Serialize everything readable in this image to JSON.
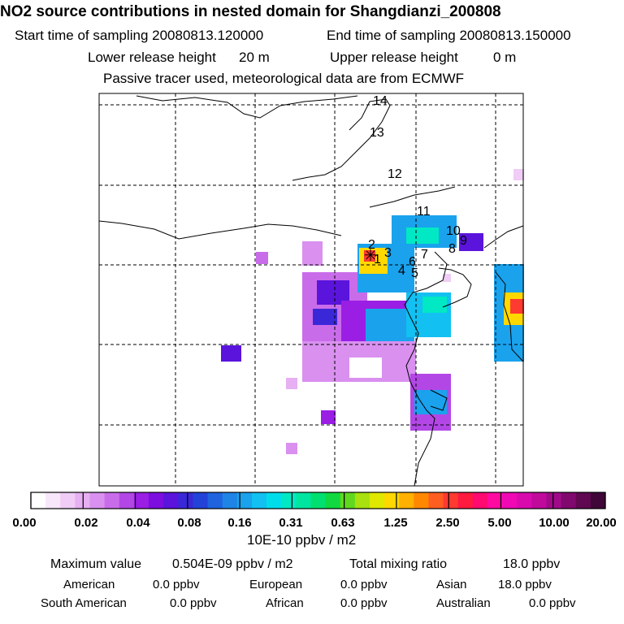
{
  "header": {
    "title": "NO2 source contributions in nested domain for Shangdianzi_200808",
    "start_label": "Start time of sampling 20080813.120000",
    "end_label": "End time of sampling 20080813.150000",
    "lower_label": "Lower release height",
    "lower_value": "20 m",
    "upper_label": "Upper release height",
    "upper_value": "0 m",
    "tracer_note": "Passive tracer used, meteorological data are from ECMWF"
  },
  "map": {
    "site_marker": "✳",
    "region_labels": [
      "1",
      "2",
      "3",
      "4",
      "5",
      "6",
      "7",
      "8",
      "9",
      "10",
      "11",
      "12",
      "13",
      "14"
    ]
  },
  "colorbar": {
    "ticks": [
      "0.00",
      "0.02",
      "0.04",
      "0.08",
      "0.16",
      "0.31",
      "0.63",
      "1.25",
      "2.50",
      "5.00",
      "10.00",
      "20.00"
    ],
    "unit": "10E-10 ppbv / m2",
    "colors": [
      "#ffffff",
      "#f8e6fa",
      "#f0ccf6",
      "#e6b0f2",
      "#d990ef",
      "#c96cea",
      "#b347e6",
      "#9a1ee3",
      "#7c0ee0",
      "#5a14dc",
      "#3a28d8",
      "#2342d8",
      "#1f63df",
      "#1e84e6",
      "#1aa2ed",
      "#12c0f1",
      "#00ddea",
      "#00e8c4",
      "#00e6a0",
      "#00e070",
      "#10d840",
      "#60d820",
      "#a8e010",
      "#e0e800",
      "#ffd800",
      "#ffb000",
      "#ff8800",
      "#ff5e20",
      "#ff3a30",
      "#ff1a40",
      "#ff0a70",
      "#ff0aa0",
      "#f008b4",
      "#d80aae",
      "#c00a9c",
      "#a00a88",
      "#80086e",
      "#600852",
      "#400638"
    ]
  },
  "summary": {
    "max_label": "Maximum value",
    "max_value": "0.504E-09 ppbv / m2",
    "total_label": "Total mixing ratio",
    "total_value": "18.0 ppbv",
    "regions": [
      {
        "name": "American",
        "value": "0.0 ppbv"
      },
      {
        "name": "European",
        "value": "0.0 ppbv"
      },
      {
        "name": "Asian",
        "value": "18.0 ppbv"
      },
      {
        "name": "South American",
        "value": "0.0 ppbv"
      },
      {
        "name": "African",
        "value": "0.0 ppbv"
      },
      {
        "name": "Australian",
        "value": "0.0 ppbv"
      }
    ]
  }
}
